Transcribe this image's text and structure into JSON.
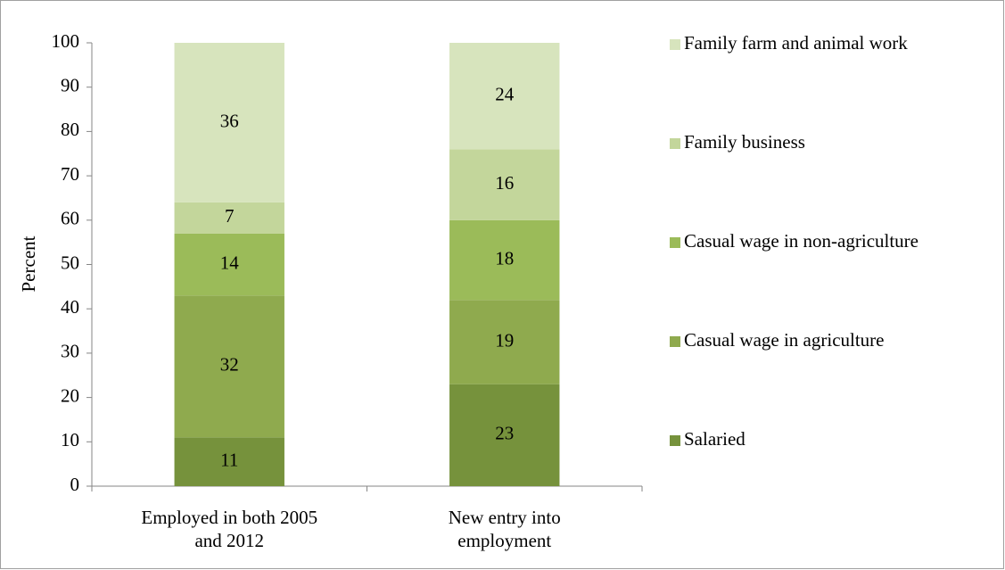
{
  "chart_data": {
    "type": "stacked_bar",
    "y_label": "Percent",
    "categories": [
      "Employed in both 2005 and 2012",
      "New entry into employment"
    ],
    "series": [
      {
        "name": "Salaried",
        "color": "#76923c",
        "values": [
          11,
          23
        ]
      },
      {
        "name": "Casual wage in agriculture",
        "color": "#8faa4e",
        "values": [
          32,
          19
        ]
      },
      {
        "name": "Casual wage in non-agriculture",
        "color": "#9bbb59",
        "values": [
          14,
          18
        ]
      },
      {
        "name": "Family business",
        "color": "#c3d69b",
        "values": [
          7,
          16
        ]
      },
      {
        "name": "Family farm and animal work",
        "color": "#d7e4bd",
        "values": [
          36,
          24
        ]
      }
    ],
    "ylim": [
      0,
      100
    ],
    "yticks": [
      0,
      10,
      20,
      30,
      40,
      50,
      60,
      70,
      80,
      90,
      100
    ],
    "legend": "right",
    "grid": false
  }
}
